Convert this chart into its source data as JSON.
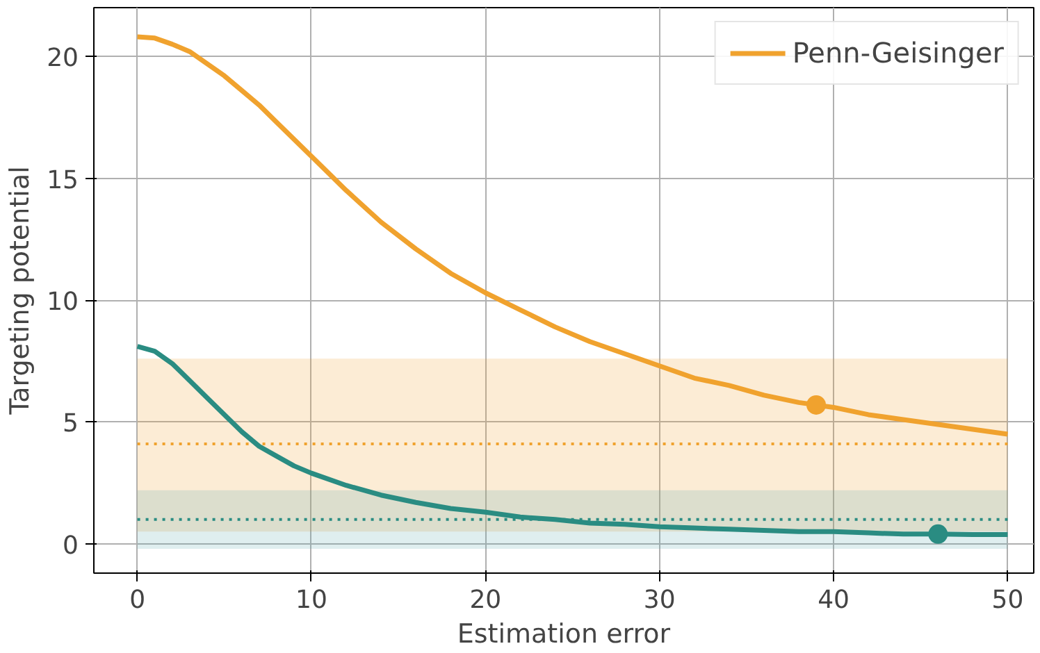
{
  "chart_data": {
    "type": "line",
    "xlabel": "Estimation error",
    "ylabel": "Targeting potential",
    "x": [
      0,
      1,
      2,
      3,
      4,
      5,
      6,
      7,
      8,
      9,
      10,
      12,
      14,
      16,
      18,
      20,
      22,
      24,
      26,
      28,
      30,
      32,
      34,
      36,
      38,
      40,
      42,
      44,
      46,
      48,
      50
    ],
    "series": [
      {
        "name": "Penn-Geisinger",
        "color": "#f0a22e",
        "values": [
          20.8,
          20.75,
          20.5,
          20.2,
          19.7,
          19.2,
          18.6,
          18.0,
          17.3,
          16.6,
          15.9,
          14.5,
          13.2,
          12.1,
          11.1,
          10.3,
          9.6,
          8.9,
          8.3,
          7.8,
          7.3,
          6.8,
          6.5,
          6.1,
          5.8,
          5.6,
          5.3,
          5.1,
          4.9,
          4.7,
          4.5
        ]
      },
      {
        "color": "#2a8c82",
        "values": [
          8.1,
          7.9,
          7.4,
          6.7,
          6.0,
          5.3,
          4.6,
          4.0,
          3.6,
          3.2,
          2.9,
          2.4,
          2.0,
          1.7,
          1.45,
          1.3,
          1.1,
          1.0,
          0.85,
          0.8,
          0.7,
          0.65,
          0.6,
          0.55,
          0.5,
          0.5,
          0.45,
          0.4,
          0.4,
          0.38,
          0.38
        ]
      },
      {
        "type": "scatter",
        "marker": "circle",
        "color": "#f0a22e",
        "x": [
          39
        ],
        "values": [
          5.7
        ]
      },
      {
        "type": "scatter",
        "marker": "circle",
        "color": "#2a8c82",
        "x": [
          46
        ],
        "values": [
          0.4
        ]
      }
    ],
    "bands": [
      {
        "axis": "y",
        "from": 0.5,
        "to": 7.6,
        "color": "#f0a22e"
      },
      {
        "axis": "y",
        "from": -0.2,
        "to": 2.2,
        "color": "#5fa8b0"
      }
    ],
    "ref_lines": [
      {
        "axis": "y",
        "value": 4.1,
        "color": "#f0a22e",
        "line_style": "dotted"
      },
      {
        "axis": "y",
        "value": 1.0,
        "color": "#2a8c82",
        "line_style": "dotted"
      }
    ],
    "xlim": [
      -2.5,
      51.5
    ],
    "ylim": [
      -1.2,
      22
    ],
    "xticks": [
      0,
      10,
      20,
      30,
      40,
      50
    ],
    "yticks": [
      0,
      5,
      10,
      15,
      20
    ],
    "grid": true,
    "legend": "top right",
    "line_style": "solid"
  }
}
